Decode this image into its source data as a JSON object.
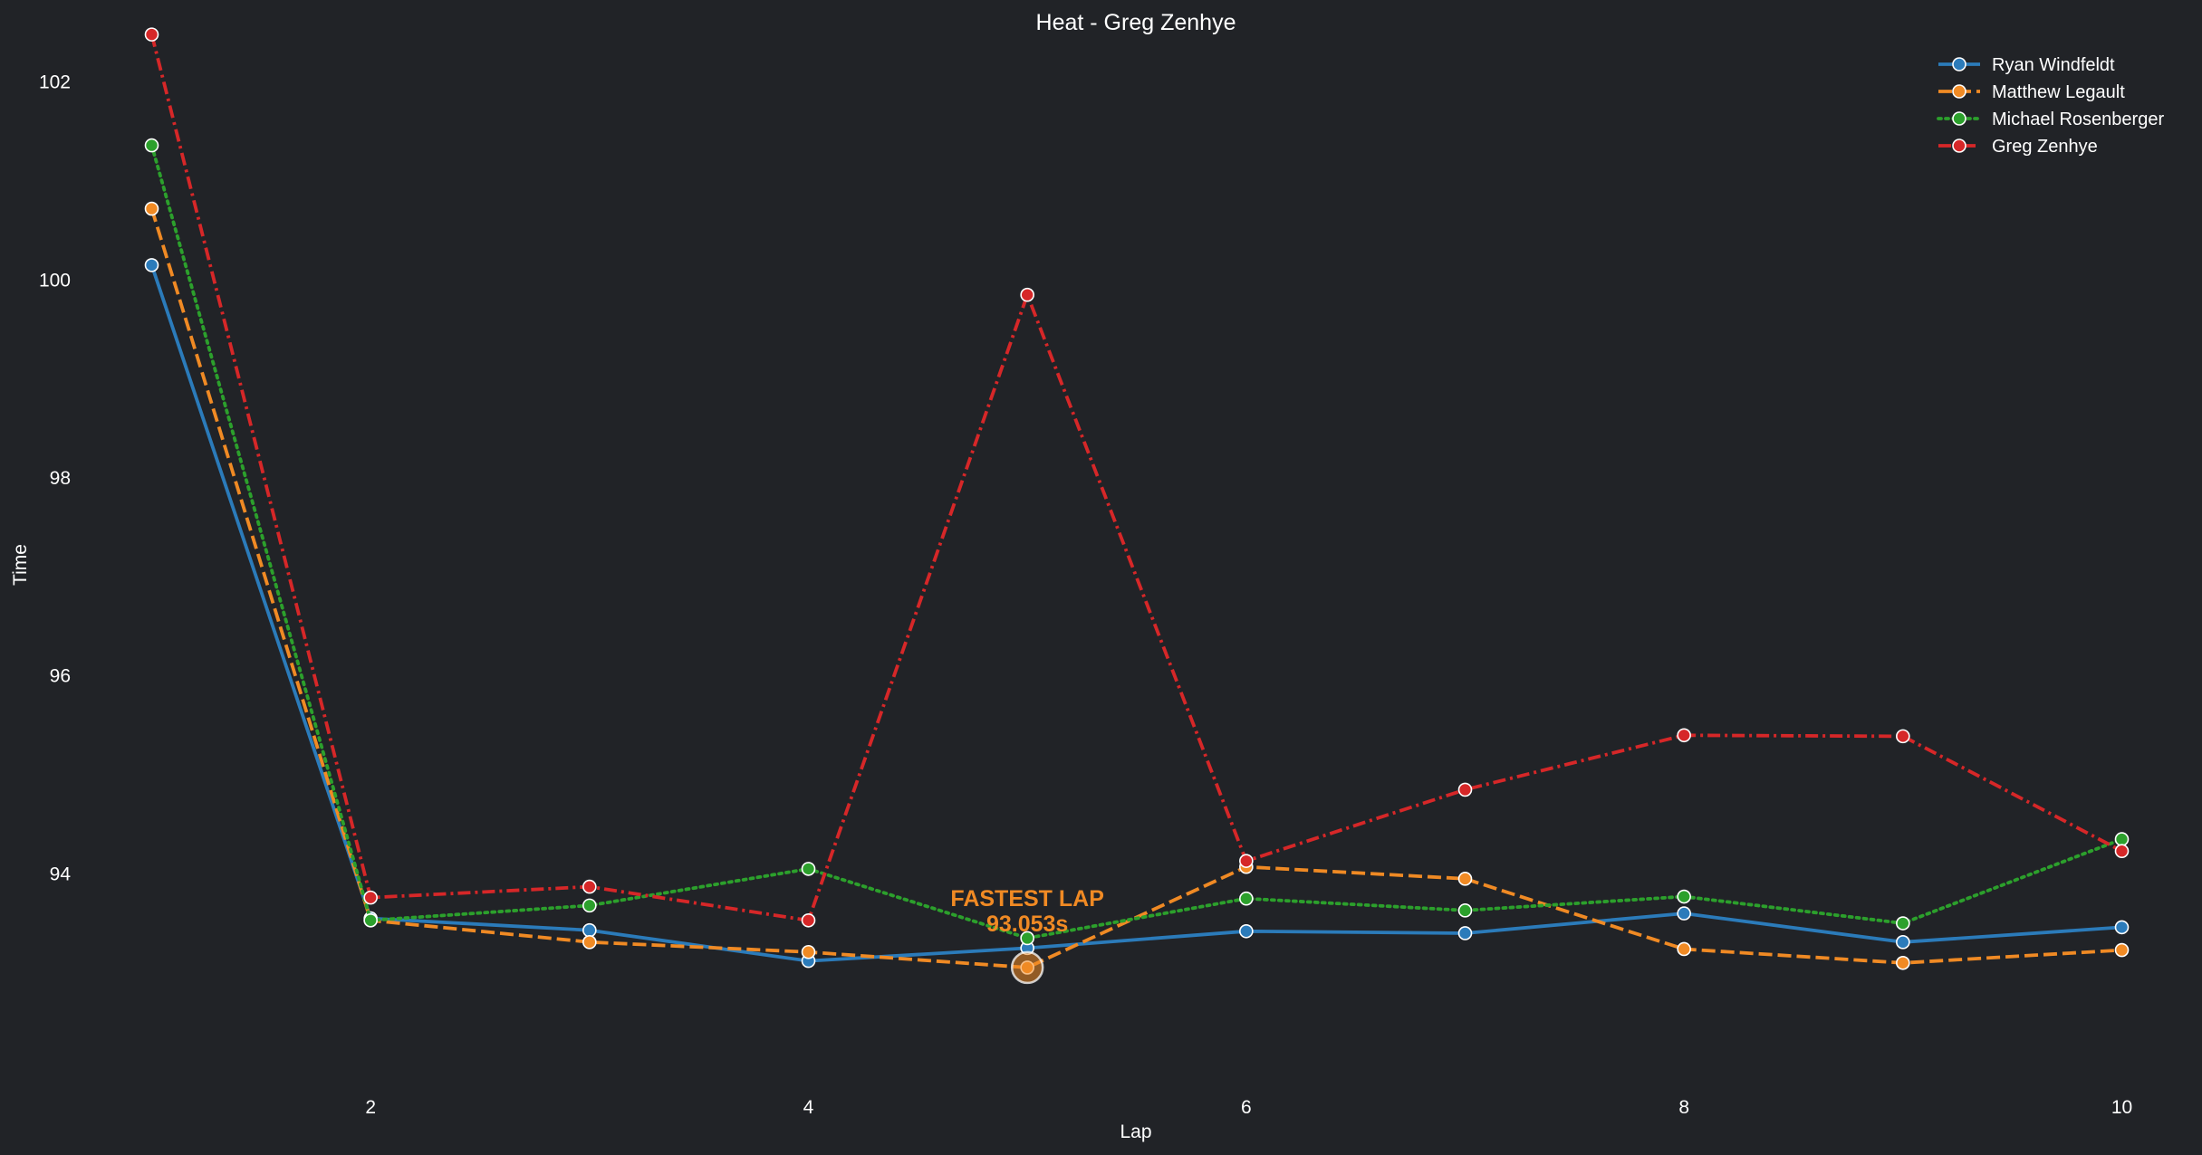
{
  "chart_data": {
    "type": "line",
    "title": "Heat - Greg Zenhye",
    "xlabel": "Lap",
    "ylabel": "Time",
    "x": [
      1,
      2,
      3,
      4,
      5,
      6,
      7,
      8,
      9,
      10
    ],
    "xticks": [
      "2",
      "4",
      "6",
      "8",
      "10"
    ],
    "yticks": [
      "94",
      "96",
      "98",
      "100",
      "102"
    ],
    "xlim": [
      0.7,
      10.3
    ],
    "ylim": [
      91.9,
      102.6
    ],
    "grid": false,
    "legend_position": "top-right",
    "series": [
      {
        "name": "Ryan Windfeldt",
        "color": "#2b7bba",
        "line_style": "solid",
        "values": [
          100.15,
          93.55,
          93.43,
          93.12,
          93.25,
          93.42,
          93.4,
          93.6,
          93.31,
          93.46
        ]
      },
      {
        "name": "Matthew Legault",
        "color": "#f08a24",
        "line_style": "dashed",
        "values": [
          100.72,
          93.53,
          93.31,
          93.21,
          93.053,
          94.07,
          93.95,
          93.24,
          93.1,
          93.23
        ]
      },
      {
        "name": "Michael Rosenberger",
        "color": "#2ca02c",
        "line_style": "dotted",
        "values": [
          101.36,
          93.53,
          93.68,
          94.05,
          93.35,
          93.75,
          93.63,
          93.77,
          93.5,
          94.35
        ]
      },
      {
        "name": "Greg Zenhye",
        "color": "#d62728",
        "line_style": "dashdot",
        "values": [
          102.48,
          93.76,
          93.87,
          93.53,
          99.85,
          94.13,
          94.85,
          95.4,
          95.39,
          94.23
        ]
      }
    ],
    "annotations": [
      {
        "text_line1": "FASTEST LAP",
        "text_line2": "93.053s",
        "series": "Matthew Legault",
        "x": 5,
        "y": 93.053,
        "color": "#f08a24"
      }
    ]
  }
}
